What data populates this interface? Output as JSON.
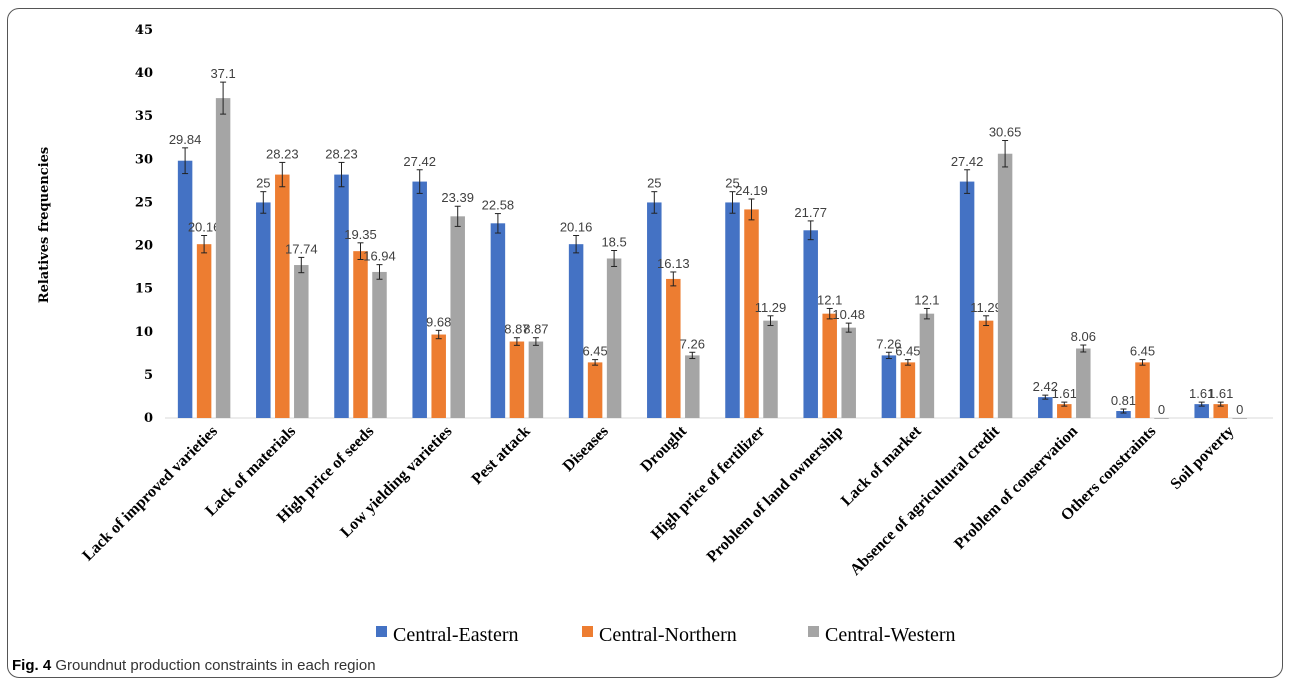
{
  "caption": {
    "number": "Fig. 4",
    "text": "Groundnut production constraints in each region"
  },
  "chart_data": {
    "type": "bar",
    "title": "",
    "xlabel": "",
    "ylabel": "Relatives frequencies",
    "ylim": [
      0,
      45
    ],
    "yticks": [
      0,
      5,
      10,
      15,
      20,
      25,
      30,
      35,
      40,
      45
    ],
    "grid": false,
    "error_bars": true,
    "legend_position": "bottom",
    "categories": [
      "Lack of improved varieties",
      "Lack of materials",
      "High price of seeds",
      "Low yielding varieties",
      "Pest attack",
      "Diseases",
      "Drought",
      "High price of fertilizer",
      "Problem of land ownership",
      "Lack of market",
      "Absence of agricultural credit",
      "Problem of conservation",
      "Others constraints",
      "Soil poverty"
    ],
    "series": [
      {
        "name": "Central-Eastern",
        "color": "#4472C4",
        "values": [
          29.84,
          25,
          28.23,
          27.42,
          22.58,
          20.16,
          25,
          25,
          21.77,
          7.26,
          27.42,
          2.42,
          0.81,
          1.61
        ],
        "labels": [
          "29.84",
          "25",
          "28.23",
          "27.42",
          "22.58",
          "20.16",
          "25",
          "25",
          "21.77",
          "7.26",
          "27.42",
          "2.42",
          "0.81",
          "1.61"
        ]
      },
      {
        "name": "Central-Northern",
        "color": "#ED7D31",
        "values": [
          20.16,
          28.23,
          19.35,
          9.68,
          8.87,
          6.45,
          16.13,
          24.19,
          12.1,
          6.45,
          11.29,
          1.61,
          6.45,
          1.61
        ],
        "labels": [
          "20.16",
          "28.23",
          "19.35",
          "9.68",
          "8.87",
          "6.45",
          "16.13",
          "24.19",
          "12.1",
          "6.45",
          "11.29",
          "1.61",
          "6.45",
          "1.61"
        ]
      },
      {
        "name": "Central-Western",
        "color": "#A5A5A5",
        "values": [
          37.1,
          17.74,
          16.94,
          23.39,
          8.87,
          18.5,
          7.26,
          11.29,
          10.48,
          12.1,
          30.65,
          8.06,
          0,
          0
        ],
        "labels": [
          "37.1",
          "17.74",
          "16.94",
          "23.39",
          "8.87",
          "18.5",
          "7.26",
          "11.29",
          "10.48",
          "12.1",
          "30.65",
          "8.06",
          "0",
          "0"
        ]
      }
    ]
  }
}
